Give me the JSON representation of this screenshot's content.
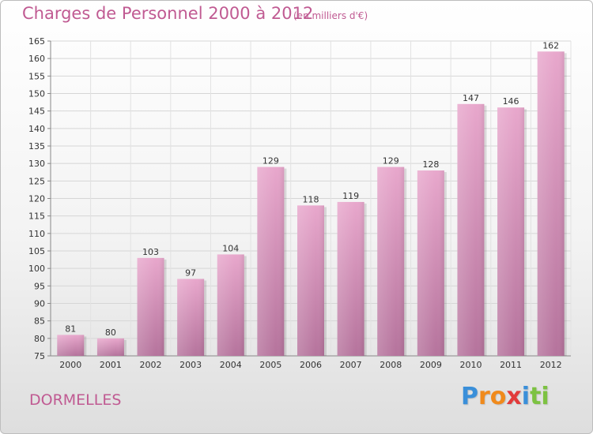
{
  "header": {
    "title": "Charges de Personnel 2000 à 2012",
    "subtitle": "(en milliers d'€)"
  },
  "footer": {
    "city": "DORMELLES",
    "logo_text": "Proxiti",
    "logo_letters": [
      {
        "char": "P",
        "color": "#3a8fd9"
      },
      {
        "char": "r",
        "color": "#f08a1c"
      },
      {
        "char": "o",
        "color": "#f08a1c"
      },
      {
        "char": "x",
        "color": "#e23a3a"
      },
      {
        "char": "i",
        "color": "#3a8fd9"
      },
      {
        "char": "t",
        "color": "#7dc242"
      },
      {
        "char": "i",
        "color": "#7dc242"
      }
    ]
  },
  "colors": {
    "bar_fill_top": "#e8a7cc",
    "bar_fill_bottom": "#b5739c",
    "accent": "#c05a92"
  },
  "chart_data": {
    "type": "bar",
    "title": "Charges de Personnel 2000 à 2012",
    "subtitle": "(en milliers d'€)",
    "categories": [
      "2000",
      "2001",
      "2002",
      "2003",
      "2004",
      "2005",
      "2006",
      "2007",
      "2008",
      "2009",
      "2010",
      "2011",
      "2012"
    ],
    "values": [
      81,
      80,
      103,
      97,
      104,
      129,
      118,
      119,
      129,
      128,
      147,
      146,
      162
    ],
    "ylim": [
      75,
      165
    ],
    "yticks": [
      75,
      80,
      85,
      90,
      95,
      100,
      105,
      110,
      115,
      120,
      125,
      130,
      135,
      140,
      145,
      150,
      155,
      160,
      165
    ],
    "grid": true,
    "xlabel": "",
    "ylabel": ""
  }
}
